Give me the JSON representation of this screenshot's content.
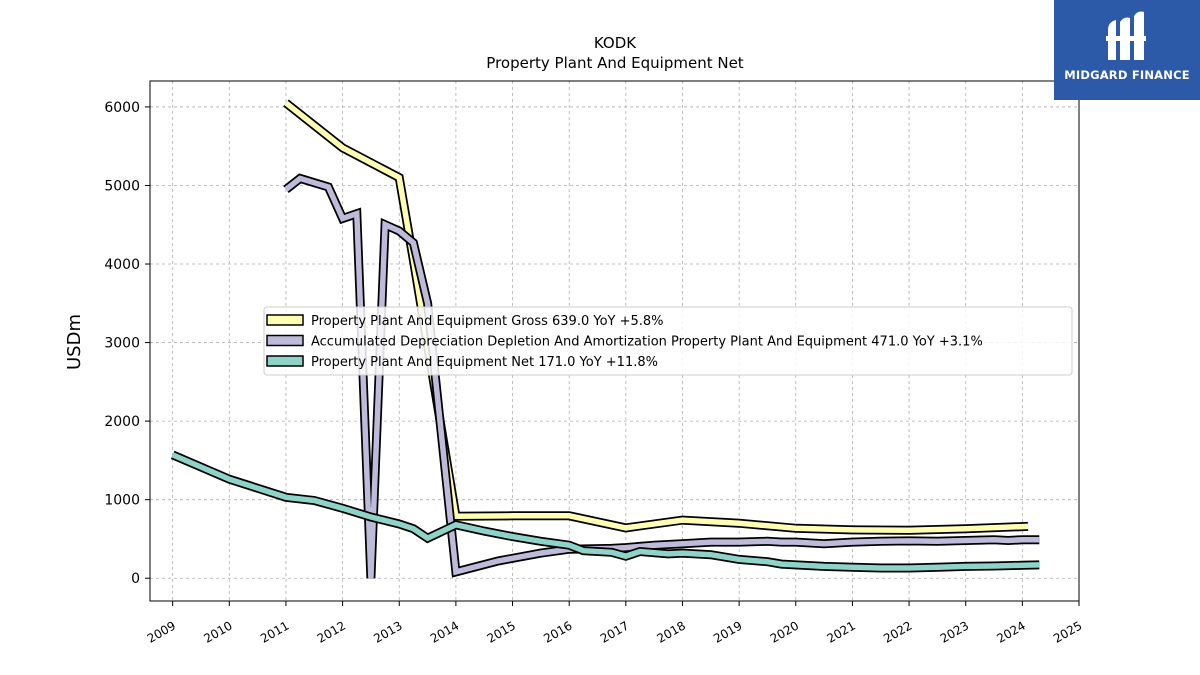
{
  "chart_data": {
    "type": "line",
    "title": "KODK",
    "subtitle": "Property Plant And Equipment Net",
    "xlabel": "",
    "ylabel": "USDm",
    "xlim": [
      2008.6,
      2025.0
    ],
    "ylim": [
      -290,
      6330
    ],
    "x_ticks": [
      "2009",
      "2010",
      "2011",
      "2012",
      "2013",
      "2014",
      "2015",
      "2016",
      "2017",
      "2018",
      "2019",
      "2020",
      "2021",
      "2022",
      "2023",
      "2024",
      "2025"
    ],
    "y_ticks": [
      0,
      1000,
      2000,
      3000,
      4000,
      5000,
      6000
    ],
    "grid": true,
    "legend_placement": "center",
    "series": [
      {
        "name": "Property Plant And Equipment Gross  639.0 YoY +5.8%",
        "color": "#ffffb3",
        "points": [
          [
            2011.0,
            6050
          ],
          [
            2012.0,
            5480
          ],
          [
            2013.0,
            5100
          ],
          [
            2013.25,
            4050
          ],
          [
            2014.0,
            790
          ],
          [
            2015.0,
            795
          ],
          [
            2016.0,
            795
          ],
          [
            2017.0,
            640
          ],
          [
            2018.0,
            740
          ],
          [
            2019.0,
            700
          ],
          [
            2020.0,
            635
          ],
          [
            2021.0,
            615
          ],
          [
            2022.0,
            610
          ],
          [
            2023.0,
            630
          ],
          [
            2024.1,
            660
          ]
        ]
      },
      {
        "name": "Accumulated Depreciation Depletion And Amortization Property Plant And Equipment  471.0 YoY +3.1%",
        "color": "#bebada",
        "points": [
          [
            2011.0,
            4950
          ],
          [
            2011.25,
            5090
          ],
          [
            2011.75,
            4980
          ],
          [
            2012.0,
            4580
          ],
          [
            2012.25,
            4640
          ],
          [
            2012.5,
            0
          ],
          [
            2012.75,
            4500
          ],
          [
            2013.0,
            4420
          ],
          [
            2013.25,
            4270
          ],
          [
            2013.5,
            3500
          ],
          [
            2014.0,
            80
          ],
          [
            2014.75,
            220
          ],
          [
            2015.5,
            320
          ],
          [
            2016.0,
            370
          ],
          [
            2016.75,
            380
          ],
          [
            2017.0,
            390
          ],
          [
            2017.5,
            420
          ],
          [
            2018.0,
            440
          ],
          [
            2018.5,
            460
          ],
          [
            2019.0,
            460
          ],
          [
            2019.5,
            470
          ],
          [
            2019.75,
            460
          ],
          [
            2020.0,
            460
          ],
          [
            2020.5,
            440
          ],
          [
            2021.0,
            460
          ],
          [
            2021.5,
            470
          ],
          [
            2022.0,
            475
          ],
          [
            2022.5,
            470
          ],
          [
            2023.0,
            480
          ],
          [
            2023.5,
            490
          ],
          [
            2023.75,
            480
          ],
          [
            2024.0,
            490
          ],
          [
            2024.3,
            490
          ]
        ]
      },
      {
        "name": "Property Plant And Equipment Net  171.0 YoY +11.8%",
        "color": "#8dd3c7",
        "points": [
          [
            2009.0,
            1570
          ],
          [
            2010.0,
            1260
          ],
          [
            2011.0,
            1030
          ],
          [
            2011.5,
            990
          ],
          [
            2012.0,
            890
          ],
          [
            2012.5,
            780
          ],
          [
            2013.0,
            690
          ],
          [
            2013.25,
            630
          ],
          [
            2013.5,
            510
          ],
          [
            2014.0,
            680
          ],
          [
            2014.5,
            600
          ],
          [
            2015.0,
            530
          ],
          [
            2015.5,
            470
          ],
          [
            2016.0,
            420
          ],
          [
            2016.25,
            350
          ],
          [
            2016.75,
            330
          ],
          [
            2017.0,
            280
          ],
          [
            2017.25,
            340
          ],
          [
            2017.75,
            310
          ],
          [
            2018.0,
            320
          ],
          [
            2018.5,
            300
          ],
          [
            2019.0,
            240
          ],
          [
            2019.5,
            210
          ],
          [
            2019.75,
            180
          ],
          [
            2020.0,
            170
          ],
          [
            2020.5,
            150
          ],
          [
            2021.0,
            140
          ],
          [
            2021.5,
            130
          ],
          [
            2022.0,
            130
          ],
          [
            2022.5,
            140
          ],
          [
            2023.0,
            150
          ],
          [
            2023.5,
            155
          ],
          [
            2024.0,
            165
          ],
          [
            2024.3,
            170
          ]
        ]
      }
    ]
  },
  "logo": {
    "text": "MIDGARD FINANCE"
  }
}
